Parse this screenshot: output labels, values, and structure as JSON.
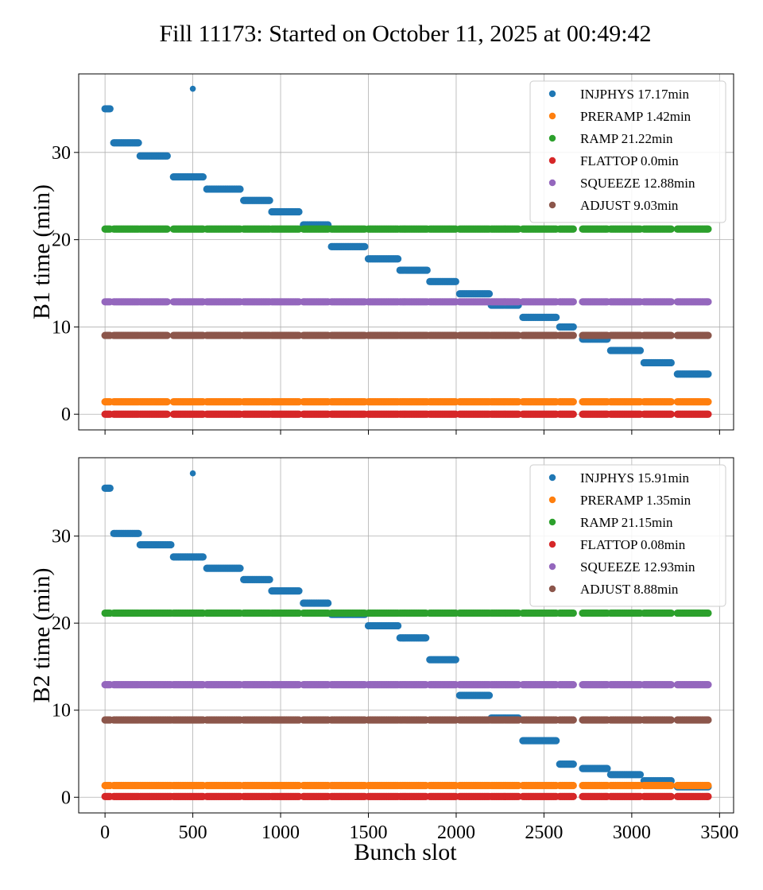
{
  "figure": {
    "title": "Fill 11173: Started on October 11, 2025 at 00:49:42",
    "xlabel": "Bunch slot"
  },
  "colors": {
    "INJPHYS": "#1f77b4",
    "PRERAMP": "#ff7f0e",
    "RAMP": "#2ca02c",
    "FLATTOP": "#d62728",
    "SQUEEZE": "#9467bd",
    "ADJUST": "#8c564b"
  },
  "chart_data": [
    {
      "type": "scatter",
      "title": "",
      "xlabel": "",
      "ylabel": "B1 time (min)",
      "xlim": [
        -150,
        3580
      ],
      "ylim": [
        -1.8,
        39
      ],
      "xticks": [
        0,
        500,
        1000,
        1500,
        2000,
        2500,
        3000,
        3500
      ],
      "yticks": [
        0,
        10,
        20,
        30
      ],
      "grid": true,
      "legend_position": "top-right",
      "bunch_segments": [
        [
          0,
          30
        ],
        [
          50,
          190
        ],
        [
          200,
          360
        ],
        [
          390,
          560
        ],
        [
          580,
          770
        ],
        [
          790,
          940
        ],
        [
          950,
          1110
        ],
        [
          1130,
          1270
        ],
        [
          1290,
          1480
        ],
        [
          1500,
          1670
        ],
        [
          1680,
          1840
        ],
        [
          1850,
          2000
        ],
        [
          2020,
          2190
        ],
        [
          2200,
          2360
        ],
        [
          2380,
          2570
        ],
        [
          2590,
          2670
        ],
        [
          2720,
          2860
        ],
        [
          2880,
          3050
        ],
        [
          3070,
          3230
        ],
        [
          3260,
          3440
        ]
      ],
      "series": [
        {
          "name": "INJPHYS",
          "legend_label": "INJPHYS 17.17min",
          "y_steps": [
            35,
            31.1,
            29.6,
            27.2,
            25.8,
            24.5,
            23.2,
            21.7,
            19.2,
            17.8,
            16.5,
            15.2,
            13.8,
            12.5,
            11.1,
            10,
            8.6,
            7.3,
            5.9,
            4.6
          ],
          "extra_points": [
            [
              500,
              37.3
            ]
          ]
        },
        {
          "name": "PRERAMP",
          "legend_label": "PRERAMP 1.42min",
          "y_steps": [
            1.42
          ]
        },
        {
          "name": "RAMP",
          "legend_label": "RAMP 21.22min",
          "y_steps": [
            21.22
          ]
        },
        {
          "name": "FLATTOP",
          "legend_label": "FLATTOP 0.0min",
          "y_steps": [
            0.0
          ]
        },
        {
          "name": "SQUEEZE",
          "legend_label": "SQUEEZE 12.88min",
          "y_steps": [
            12.88
          ]
        },
        {
          "name": "ADJUST",
          "legend_label": "ADJUST 9.03min",
          "y_steps": [
            9.03
          ]
        }
      ]
    },
    {
      "type": "scatter",
      "title": "",
      "xlabel": "Bunch slot",
      "ylabel": "B2 time (min)",
      "xlim": [
        -150,
        3580
      ],
      "ylim": [
        -1.8,
        39
      ],
      "xticks": [
        0,
        500,
        1000,
        1500,
        2000,
        2500,
        3000,
        3500
      ],
      "yticks": [
        0,
        10,
        20,
        30
      ],
      "grid": true,
      "legend_position": "top-right",
      "bunch_segments": [
        [
          0,
          30
        ],
        [
          50,
          190
        ],
        [
          200,
          380
        ],
        [
          390,
          560
        ],
        [
          580,
          770
        ],
        [
          790,
          940
        ],
        [
          950,
          1110
        ],
        [
          1130,
          1270
        ],
        [
          1290,
          1480
        ],
        [
          1500,
          1670
        ],
        [
          1680,
          1830
        ],
        [
          1850,
          2000
        ],
        [
          2020,
          2190
        ],
        [
          2200,
          2360
        ],
        [
          2380,
          2570
        ],
        [
          2590,
          2670
        ],
        [
          2720,
          2860
        ],
        [
          2880,
          3050
        ],
        [
          3070,
          3230
        ],
        [
          3260,
          3440
        ]
      ],
      "series": [
        {
          "name": "INJPHYS",
          "legend_label": "INJPHYS 15.91min",
          "y_steps": [
            35.5,
            30.3,
            29,
            27.6,
            26.3,
            25,
            23.7,
            22.3,
            21,
            19.7,
            18.3,
            15.8,
            11.7,
            9.1,
            6.5,
            3.8,
            3.3,
            2.6,
            1.9,
            1.2
          ],
          "extra_points": [
            [
              500,
              37.2
            ]
          ]
        },
        {
          "name": "PRERAMP",
          "legend_label": "PRERAMP 1.35min",
          "y_steps": [
            1.35
          ]
        },
        {
          "name": "RAMP",
          "legend_label": "RAMP 21.15min",
          "y_steps": [
            21.15
          ]
        },
        {
          "name": "FLATTOP",
          "legend_label": "FLATTOP 0.08min",
          "y_steps": [
            0.08
          ]
        },
        {
          "name": "SQUEEZE",
          "legend_label": "SQUEEZE 12.93min",
          "y_steps": [
            12.93
          ]
        },
        {
          "name": "ADJUST",
          "legend_label": "ADJUST 8.88min",
          "y_steps": [
            8.88
          ]
        }
      ]
    }
  ]
}
